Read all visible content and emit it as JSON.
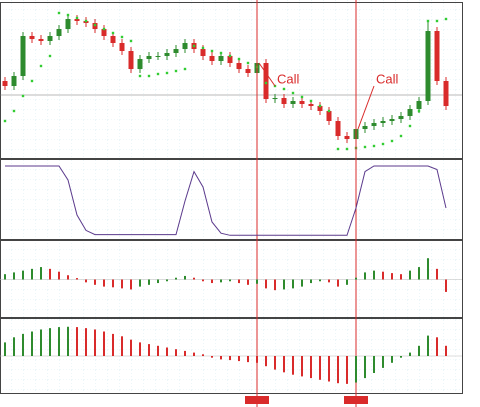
{
  "chart_data": [
    {
      "type": "candlestick",
      "ylim": [
        0,
        150
      ],
      "color_up": "#2e8b2e",
      "color_down": "#d92b2b",
      "open": [
        75,
        70,
        80,
        120,
        117,
        115,
        120,
        127,
        137,
        135,
        133,
        127,
        120,
        113,
        105,
        87,
        97,
        100,
        100,
        103,
        107,
        113,
        107,
        100,
        95,
        100,
        93,
        87,
        83,
        93,
        57,
        58,
        52,
        55,
        52,
        50,
        45,
        35,
        20,
        17,
        27,
        30,
        33,
        35,
        37,
        40,
        47,
        55,
        125,
        75
      ],
      "high": [
        79,
        84,
        124,
        124,
        121,
        124,
        131,
        141,
        141,
        139,
        137,
        131,
        124,
        117,
        109,
        101,
        104,
        104,
        107,
        111,
        117,
        117,
        111,
        104,
        104,
        104,
        97,
        91,
        97,
        97,
        62,
        62,
        59,
        59,
        56,
        54,
        49,
        39,
        24,
        31,
        34,
        37,
        39,
        41,
        44,
        51,
        59,
        135,
        129,
        79
      ],
      "low": [
        66,
        66,
        76,
        113,
        111,
        111,
        116,
        123,
        131,
        129,
        123,
        116,
        109,
        101,
        83,
        83,
        93,
        96,
        96,
        99,
        103,
        103,
        96,
        91,
        91,
        89,
        83,
        79,
        79,
        53,
        53,
        48,
        48,
        48,
        46,
        41,
        31,
        16,
        13,
        13,
        23,
        26,
        29,
        31,
        33,
        36,
        43,
        51,
        71,
        46
      ],
      "close": [
        70,
        80,
        120,
        117,
        115,
        120,
        127,
        137,
        135,
        133,
        127,
        120,
        113,
        105,
        87,
        97,
        100,
        100,
        103,
        107,
        113,
        107,
        100,
        95,
        100,
        93,
        87,
        83,
        93,
        57,
        58,
        52,
        55,
        52,
        50,
        45,
        35,
        20,
        17,
        27,
        30,
        33,
        35,
        37,
        40,
        47,
        55,
        125,
        75,
        50
      ],
      "sar": {
        "color": "#33cc33",
        "values": [
          35,
          45,
          60,
          75,
          90,
          100,
          143,
          141,
          138,
          135,
          131,
          127,
          123,
          119,
          115,
          80,
          80,
          82,
          83,
          85,
          87,
          110,
          108,
          105,
          103,
          100,
          97,
          93,
          89,
          73,
          70,
          67,
          63,
          59,
          55,
          50,
          45,
          7,
          7,
          8,
          9,
          10,
          12,
          15,
          20,
          30,
          45,
          135,
          135,
          137
        ]
      },
      "signals": [
        {
          "index": 28,
          "label": "Call"
        },
        {
          "index": 39,
          "label": "Call"
        }
      ]
    },
    {
      "type": "line",
      "ylim": [
        0,
        100
      ],
      "color": "#5b3a8c",
      "values": [
        100,
        100,
        100,
        100,
        100,
        100,
        100,
        80,
        30,
        8,
        2,
        2,
        2,
        2,
        2,
        2,
        2,
        2,
        2,
        2,
        50,
        92,
        70,
        20,
        4,
        1,
        1,
        1,
        1,
        1,
        1,
        1,
        1,
        1,
        1,
        1,
        1,
        1,
        1,
        40,
        92,
        100,
        100,
        100,
        100,
        100,
        100,
        100,
        95,
        40
      ]
    },
    {
      "type": "histogram",
      "ylim": [
        -100,
        100
      ],
      "color_up": "#2e8b2e",
      "color_down": "#d92b2b",
      "values": [
        15,
        20,
        25,
        30,
        35,
        30,
        22,
        12,
        4,
        -8,
        -15,
        -20,
        -22,
        -25,
        -28,
        -20,
        -15,
        -10,
        -5,
        5,
        10,
        5,
        -5,
        -10,
        -8,
        -5,
        -10,
        -15,
        -12,
        -25,
        -30,
        -28,
        -25,
        -20,
        -10,
        -5,
        -8,
        -20,
        -15,
        5,
        20,
        25,
        22,
        18,
        15,
        25,
        35,
        60,
        30,
        -35
      ]
    },
    {
      "type": "histogram",
      "ylim": [
        -100,
        100
      ],
      "color_up": "#2e8b2e",
      "color_down": "#d92b2b",
      "values": [
        40,
        55,
        65,
        72,
        78,
        82,
        85,
        86,
        85,
        82,
        78,
        72,
        65,
        58,
        48,
        40,
        35,
        30,
        25,
        20,
        15,
        10,
        5,
        -5,
        -10,
        -12,
        -15,
        -18,
        -20,
        -30,
        -40,
        -48,
        -55,
        -60,
        -65,
        -70,
        -75,
        -80,
        -82,
        -78,
        -65,
        -50,
        -35,
        -20,
        -5,
        10,
        30,
        60,
        55,
        30
      ]
    }
  ]
}
